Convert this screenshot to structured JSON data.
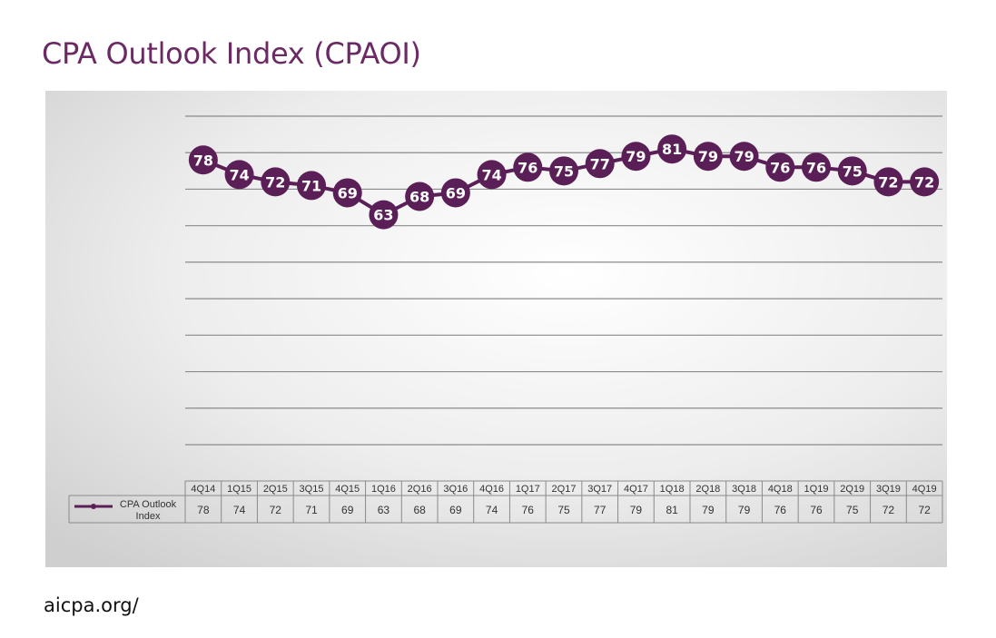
{
  "page": {
    "title": "CPA Outlook Index (CPAOI)",
    "source": "aicpa.org/"
  },
  "colors": {
    "title": "#6b2a63",
    "series": "#5b1f57",
    "marker_text": "#ffffff",
    "gridline": "#8a8a8a"
  },
  "chart_data": {
    "type": "line",
    "title": "CPA Outlook Index (CPAOI)",
    "categories": [
      "4Q14",
      "1Q15",
      "2Q15",
      "3Q15",
      "4Q15",
      "1Q16",
      "2Q16",
      "3Q16",
      "4Q16",
      "1Q17",
      "2Q17",
      "3Q17",
      "4Q17",
      "1Q18",
      "2Q18",
      "3Q18",
      "4Q18",
      "1Q19",
      "2Q19",
      "3Q19",
      "4Q19"
    ],
    "series": [
      {
        "name": "CPA Outlook Index",
        "values": [
          78,
          74,
          72,
          71,
          69,
          63,
          68,
          69,
          74,
          76,
          75,
          77,
          79,
          81,
          79,
          79,
          76,
          76,
          75,
          72,
          72
        ]
      }
    ],
    "ylim": [
      0,
      90
    ],
    "grid": true,
    "data_labels": true,
    "data_table": true,
    "legend": "data-table-left"
  }
}
